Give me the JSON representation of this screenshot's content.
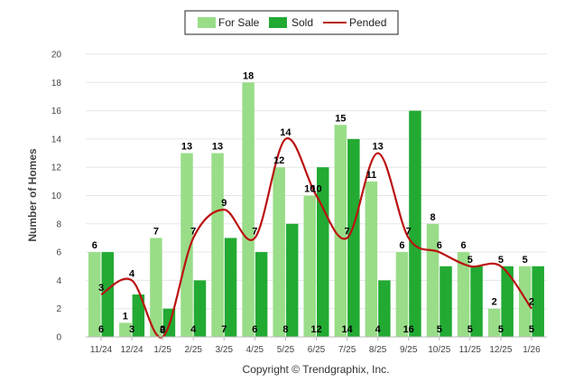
{
  "chart_data": {
    "type": "bar",
    "title": "",
    "xlabel": "",
    "ylabel": "Number of Homes",
    "ylim": [
      0,
      20
    ],
    "yticks": [
      0,
      2,
      4,
      6,
      8,
      10,
      12,
      14,
      16,
      18,
      20
    ],
    "categories": [
      "11/24",
      "12/24",
      "1/25",
      "2/25",
      "3/25",
      "4/25",
      "5/25",
      "6/25",
      "7/25",
      "8/25",
      "9/25",
      "10/25",
      "11/25",
      "12/25",
      "1/26"
    ],
    "series": [
      {
        "name": "For Sale",
        "kind": "bar",
        "color": "#99dd88",
        "values": [
          6,
          1,
          7,
          13,
          13,
          18,
          12,
          10,
          15,
          11,
          6,
          8,
          6,
          2,
          5
        ]
      },
      {
        "name": "Sold",
        "kind": "bar",
        "color": "#22aa33",
        "values": [
          6,
          3,
          2,
          4,
          7,
          6,
          8,
          12,
          14,
          4,
          16,
          5,
          5,
          5,
          5
        ]
      },
      {
        "name": "Pended",
        "kind": "line",
        "color": "#bb1111",
        "values": [
          3,
          4,
          0,
          7,
          9,
          7,
          14,
          10,
          7,
          13,
          7,
          6,
          5,
          5,
          2
        ]
      }
    ],
    "legend_position": "top-center",
    "grid": true,
    "footer": "Copyright © Trendgraphix, Inc."
  }
}
